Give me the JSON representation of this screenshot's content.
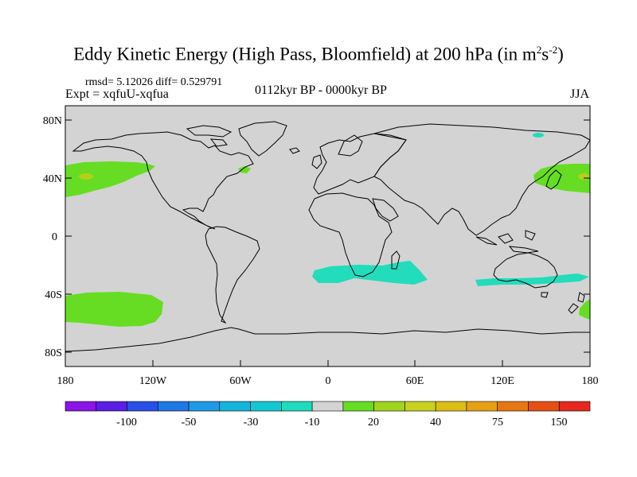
{
  "title": {
    "main": "Eddy Kinetic Energy (High Pass, Bloomfield) at 200 hPa (in m",
    "sup1": "2",
    "mid": "s",
    "sup2": "-2",
    "end": ")"
  },
  "stats": "rmsd= 5.12026 diff= 0.529791",
  "experiment": "Expt = xqfuU-xqfua",
  "period": "0112kyr BP - 0000kyr BP",
  "season": "JJA",
  "colors": {
    "land_ocean_fill": "#d3d3d3",
    "coastline": "#000000",
    "positive_anomaly": "#66dd22",
    "positive_high": "#b4d01a",
    "negative_anomaly": "#22dcbc"
  },
  "map": {
    "lat_ticks": [
      "80N",
      "40N",
      "0",
      "40S",
      "80S"
    ],
    "lon_ticks": [
      "180",
      "120W",
      "60W",
      "0",
      "60E",
      "120E",
      "180"
    ]
  },
  "colorbar": {
    "colors": [
      "#8b14e6",
      "#5a1ee6",
      "#2850e6",
      "#1e78e6",
      "#1e9ae6",
      "#14b4dc",
      "#14c8d2",
      "#1edcbe",
      "#d3d3d3",
      "#66dd22",
      "#a0d41e",
      "#c8d21e",
      "#dcbe14",
      "#e6a014",
      "#e67814",
      "#e65014",
      "#e6281e"
    ],
    "labels": [
      "-100",
      "-50",
      "-30",
      "-10",
      "20",
      "40",
      "75",
      "150"
    ]
  }
}
